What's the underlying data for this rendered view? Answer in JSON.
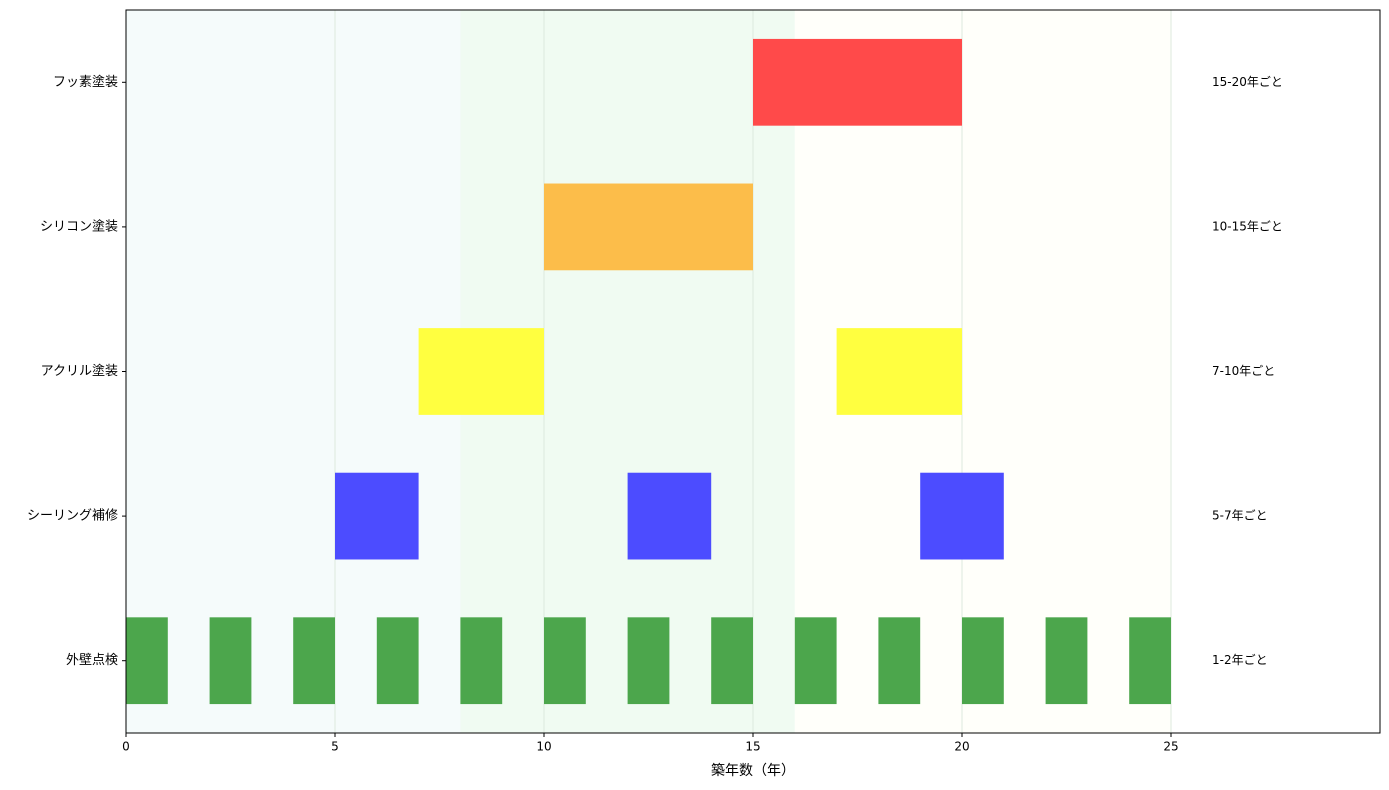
{
  "chart_data": {
    "type": "broken_barh",
    "xlabel": "築年数（年）",
    "xlim": [
      0,
      30
    ],
    "xticks": [
      0,
      5,
      10,
      15,
      20,
      25
    ],
    "grid": true,
    "spans": [
      {
        "start": 0,
        "end": 8,
        "color": "#f5fbfb"
      },
      {
        "start": 8,
        "end": 16,
        "color": "#f0fbf2"
      },
      {
        "start": 16,
        "end": 25,
        "color": "#fffffa"
      }
    ],
    "series": [
      {
        "name": "外壁点検",
        "color": "#4ca64c",
        "interval": "1-2年ごと",
        "segments": [
          [
            0,
            1
          ],
          [
            2,
            1
          ],
          [
            4,
            1
          ],
          [
            6,
            1
          ],
          [
            8,
            1
          ],
          [
            10,
            1
          ],
          [
            12,
            1
          ],
          [
            14,
            1
          ],
          [
            16,
            1
          ],
          [
            18,
            1
          ],
          [
            20,
            1
          ],
          [
            22,
            1
          ],
          [
            24,
            1
          ]
        ]
      },
      {
        "name": "シーリング補修",
        "color": "#4c4cff",
        "interval": "5-7年ごと",
        "segments": [
          [
            5,
            2
          ],
          [
            12,
            2
          ],
          [
            19,
            2
          ]
        ]
      },
      {
        "name": "アクリル塗装",
        "color": "#ffff40",
        "interval": "7-10年ごと",
        "segments": [
          [
            7,
            3
          ],
          [
            17,
            3
          ]
        ]
      },
      {
        "name": "シリコン塗装",
        "color": "#fcbd4a",
        "interval": "10-15年ごと",
        "segments": [
          [
            10,
            5
          ]
        ]
      },
      {
        "name": "フッ素塗装",
        "color": "#ff4a4a",
        "interval": "15-20年ごと",
        "segments": [
          [
            15,
            5
          ]
        ]
      }
    ]
  }
}
